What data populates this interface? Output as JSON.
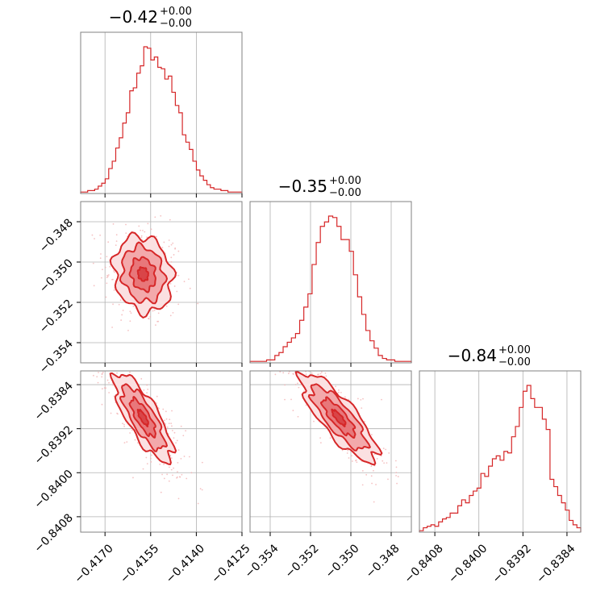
{
  "chart_data": {
    "type": "corner",
    "color": "#d62728",
    "titles": [
      {
        "value": "−0.42",
        "plus": "+0.00",
        "minus": "−0.00"
      },
      {
        "value": "−0.35",
        "plus": "+0.00",
        "minus": "−0.00"
      },
      {
        "value": "−0.84",
        "plus": "+0.00",
        "minus": "−0.00"
      }
    ],
    "params": [
      {
        "range": [
          -0.4178,
          -0.4125
        ],
        "ticks": [
          -0.417,
          -0.4155,
          -0.414,
          -0.4125
        ],
        "tick_labels": [
          "−0.4170",
          "−0.4155",
          "−0.4140",
          "−0.4125"
        ]
      },
      {
        "range": [
          -0.355,
          -0.347
        ],
        "ticks": [
          -0.354,
          -0.352,
          -0.35,
          -0.348
        ],
        "tick_labels": [
          "−0.354",
          "−0.352",
          "−0.350",
          "−0.348"
        ]
      },
      {
        "range": [
          -0.84108,
          -0.83815
        ],
        "ticks": [
          -0.8408,
          -0.84,
          -0.8392,
          -0.8384
        ],
        "tick_labels": [
          "−0.8408",
          "−0.8400",
          "−0.8392",
          "−0.8384"
        ]
      }
    ],
    "histograms": [
      {
        "edges": [
          -0.4178,
          -0.4125
        ],
        "counts": [
          0.01,
          0.01,
          0.02,
          0.02,
          0.03,
          0.05,
          0.07,
          0.1,
          0.17,
          0.22,
          0.31,
          0.38,
          0.48,
          0.55,
          0.7,
          0.72,
          0.82,
          0.87,
          1.0,
          0.99,
          0.91,
          0.93,
          0.86,
          0.85,
          0.78,
          0.8,
          0.69,
          0.6,
          0.55,
          0.4,
          0.35,
          0.3,
          0.22,
          0.16,
          0.12,
          0.09,
          0.06,
          0.04,
          0.03,
          0.03,
          0.02,
          0.02,
          0.01,
          0.01,
          0.01,
          0.01
        ]
      },
      {
        "edges": [
          -0.355,
          -0.347
        ],
        "counts": [
          0.01,
          0.01,
          0.01,
          0.01,
          0.02,
          0.02,
          0.05,
          0.07,
          0.11,
          0.14,
          0.17,
          0.2,
          0.29,
          0.38,
          0.47,
          0.67,
          0.82,
          0.93,
          0.96,
          1.0,
          0.99,
          0.93,
          0.84,
          0.84,
          0.76,
          0.6,
          0.45,
          0.33,
          0.22,
          0.15,
          0.1,
          0.05,
          0.03,
          0.02,
          0.02,
          0.01,
          0.01,
          0.01,
          0.01
        ]
      },
      {
        "edges": [
          -0.84108,
          -0.83815
        ],
        "counts": [
          0.01,
          0.03,
          0.04,
          0.05,
          0.04,
          0.07,
          0.09,
          0.1,
          0.13,
          0.13,
          0.18,
          0.22,
          0.2,
          0.25,
          0.28,
          0.3,
          0.4,
          0.38,
          0.45,
          0.5,
          0.52,
          0.49,
          0.55,
          0.54,
          0.65,
          0.72,
          0.85,
          0.96,
          1.0,
          0.91,
          0.85,
          0.85,
          0.77,
          0.7,
          0.36,
          0.31,
          0.25,
          0.2,
          0.15,
          0.08,
          0.05,
          0.03
        ]
      }
    ],
    "pairs": [
      {
        "x_param": 0,
        "y_param": 1,
        "x_mean": -0.41575,
        "y_mean": -0.3506,
        "x_sd": 0.00048,
        "y_sd": 0.00095,
        "rho": -0.15
      },
      {
        "x_param": 0,
        "y_param": 2,
        "x_mean": -0.41575,
        "y_mean": -0.839,
        "x_sd": 0.00048,
        "y_sd": 0.0004,
        "rho": -0.78
      },
      {
        "x_param": 1,
        "y_param": 2,
        "x_mean": -0.3506,
        "y_mean": -0.839,
        "x_sd": 0.00095,
        "y_sd": 0.0004,
        "rho": -0.82
      }
    ]
  }
}
